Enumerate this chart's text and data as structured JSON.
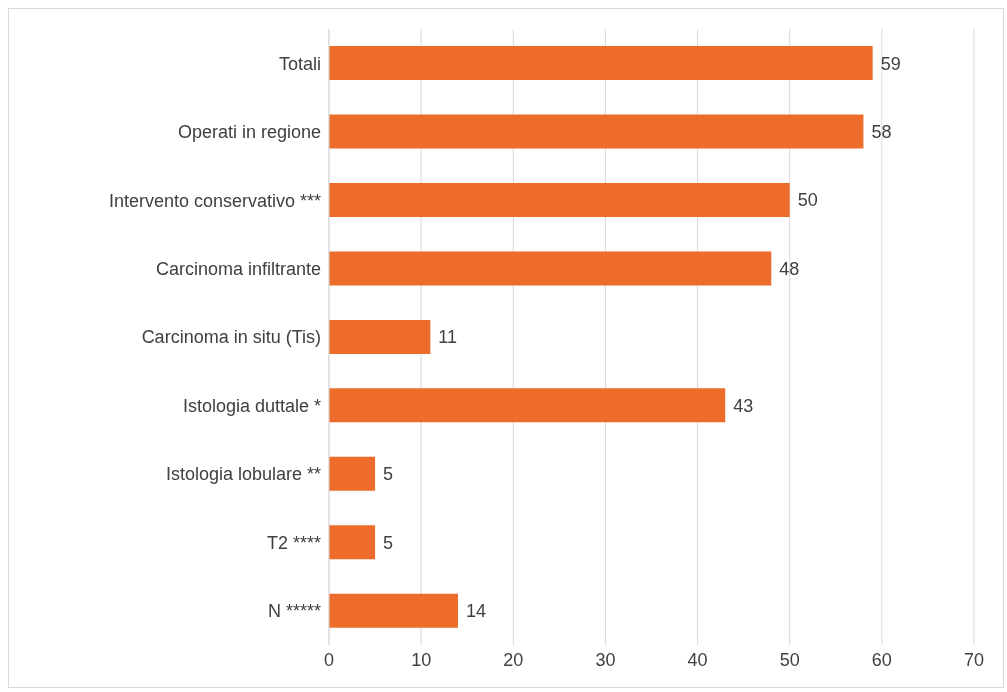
{
  "chart_data": {
    "type": "bar",
    "orientation": "horizontal",
    "categories": [
      "Totali",
      "Operati in regione",
      "Intervento conservativo ***",
      "Carcinoma infiltrante",
      "Carcinoma in situ (Tis)",
      "Istologia duttale *",
      "Istologia lobulare **",
      "T2 ****",
      "N *****"
    ],
    "values": [
      59,
      58,
      50,
      48,
      11,
      43,
      5,
      5,
      14
    ],
    "color": "#ed6c2b",
    "xlim": [
      0,
      70
    ],
    "xticks": [
      0,
      10,
      20,
      30,
      40,
      50,
      60,
      70
    ],
    "grid": "x",
    "data_labels": true
  }
}
